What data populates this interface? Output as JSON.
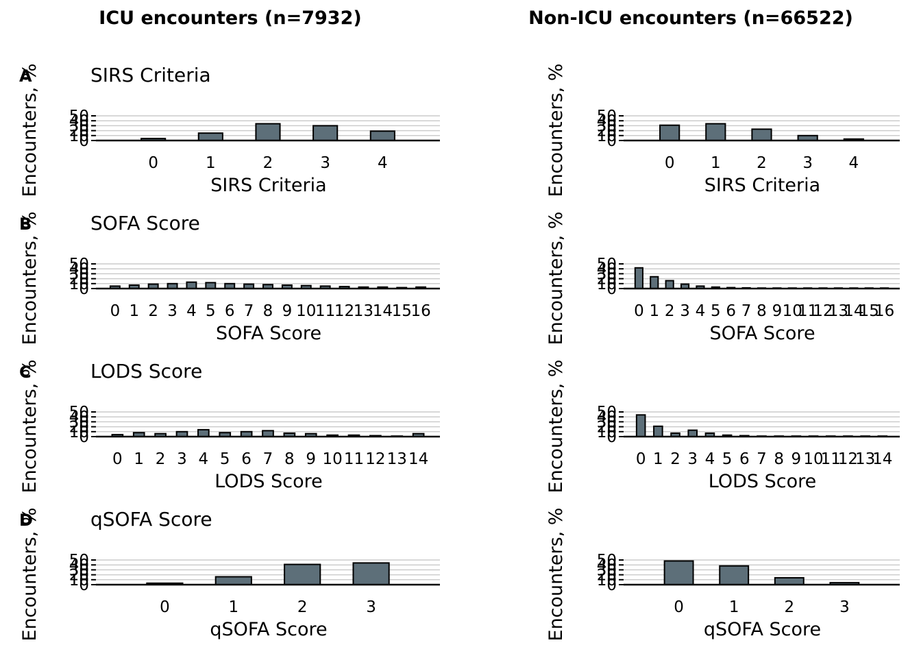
{
  "columns": [
    {
      "title": "ICU encounters (n=7932)"
    },
    {
      "title": "Non-ICU encounters (n=66522)"
    }
  ],
  "bar_color": "#5d6f79",
  "chart_data": [
    {
      "type": "bar",
      "column": 0,
      "row": 0,
      "letter": "A",
      "title": "SIRS Criteria",
      "xlabel": "SIRS Criteria",
      "ylabel": "Encounters, %",
      "ylim": [
        0,
        50
      ],
      "yticks": [
        0,
        10,
        20,
        30,
        40,
        50
      ],
      "categories": [
        "0",
        "1",
        "2",
        "3",
        "4"
      ],
      "values": [
        4,
        15,
        34,
        30,
        19
      ]
    },
    {
      "type": "bar",
      "column": 1,
      "row": 0,
      "letter": "",
      "title": "",
      "xlabel": "SIRS Criteria",
      "ylabel": "Encounters, %",
      "ylim": [
        0,
        50
      ],
      "yticks": [
        0,
        10,
        20,
        30,
        40,
        50
      ],
      "categories": [
        "0",
        "1",
        "2",
        "3",
        "4"
      ],
      "values": [
        31,
        34,
        23,
        10,
        3
      ]
    },
    {
      "type": "bar",
      "column": 0,
      "row": 1,
      "letter": "B",
      "title": "SOFA Score",
      "xlabel": "SOFA Score",
      "ylabel": "Encounters, %",
      "ylim": [
        0,
        50
      ],
      "yticks": [
        0,
        10,
        20,
        30,
        40,
        50
      ],
      "categories": [
        "0",
        "1",
        "2",
        "3",
        "4",
        "5",
        "6",
        "7",
        "8",
        "9",
        "10",
        "11",
        "12",
        "13",
        "14",
        "15",
        "16"
      ],
      "values": [
        5,
        7,
        9,
        10,
        13,
        12,
        10,
        9,
        8,
        7,
        6,
        5,
        4,
        3,
        3,
        2,
        3
      ]
    },
    {
      "type": "bar",
      "column": 1,
      "row": 1,
      "letter": "",
      "title": "",
      "xlabel": "SOFA Score",
      "ylabel": "Encounters, %",
      "ylim": [
        0,
        50
      ],
      "yticks": [
        0,
        10,
        20,
        30,
        40,
        50
      ],
      "categories": [
        "0",
        "1",
        "2",
        "3",
        "4",
        "5",
        "6",
        "7",
        "8",
        "9",
        "10",
        "11",
        "12",
        "13",
        "14",
        "15",
        "16"
      ],
      "values": [
        42,
        24,
        16,
        9,
        5,
        3,
        2,
        1.5,
        1,
        0.6,
        0.4,
        0.3,
        0.2,
        0.1,
        0.1,
        0.1,
        0.1
      ]
    },
    {
      "type": "bar",
      "column": 0,
      "row": 2,
      "letter": "C",
      "title": "LODS Score",
      "xlabel": "LODS Score",
      "ylabel": "Encounters, %",
      "ylim": [
        0,
        50
      ],
      "yticks": [
        0,
        10,
        20,
        30,
        40,
        50
      ],
      "categories": [
        "0",
        "1",
        "2",
        "3",
        "4",
        "5",
        "6",
        "7",
        "8",
        "9",
        "10",
        "11",
        "12",
        "13",
        "14"
      ],
      "values": [
        4,
        8,
        6,
        10,
        14,
        8,
        10,
        12,
        7,
        6,
        3,
        3,
        2,
        1,
        6
      ]
    },
    {
      "type": "bar",
      "column": 1,
      "row": 2,
      "letter": "",
      "title": "",
      "xlabel": "LODS Score",
      "ylabel": "Encounters, %",
      "ylim": [
        0,
        50
      ],
      "yticks": [
        0,
        10,
        20,
        30,
        40,
        50
      ],
      "categories": [
        "0",
        "1",
        "2",
        "3",
        "4",
        "5",
        "6",
        "7",
        "8",
        "9",
        "10",
        "11",
        "12",
        "13",
        "14"
      ],
      "values": [
        44,
        21,
        7,
        13,
        7,
        3,
        2,
        1,
        0.7,
        0.5,
        0.3,
        0.2,
        0.1,
        0.1,
        0.1
      ]
    },
    {
      "type": "bar",
      "column": 0,
      "row": 3,
      "letter": "D",
      "title": "qSOFA Score",
      "xlabel": "qSOFA Score",
      "ylabel": "Encounters, %",
      "ylim": [
        0,
        50
      ],
      "yticks": [
        0,
        10,
        20,
        30,
        40,
        50
      ],
      "categories": [
        "0",
        "1",
        "2",
        "3"
      ],
      "values": [
        3,
        16,
        41,
        44
      ]
    },
    {
      "type": "bar",
      "column": 1,
      "row": 3,
      "letter": "",
      "title": "",
      "xlabel": "qSOFA Score",
      "ylabel": "Encounters, %",
      "ylim": [
        0,
        50
      ],
      "yticks": [
        0,
        10,
        20,
        30,
        40,
        50
      ],
      "categories": [
        "0",
        "1",
        "2",
        "3"
      ],
      "values": [
        48,
        38,
        14,
        4
      ]
    }
  ]
}
